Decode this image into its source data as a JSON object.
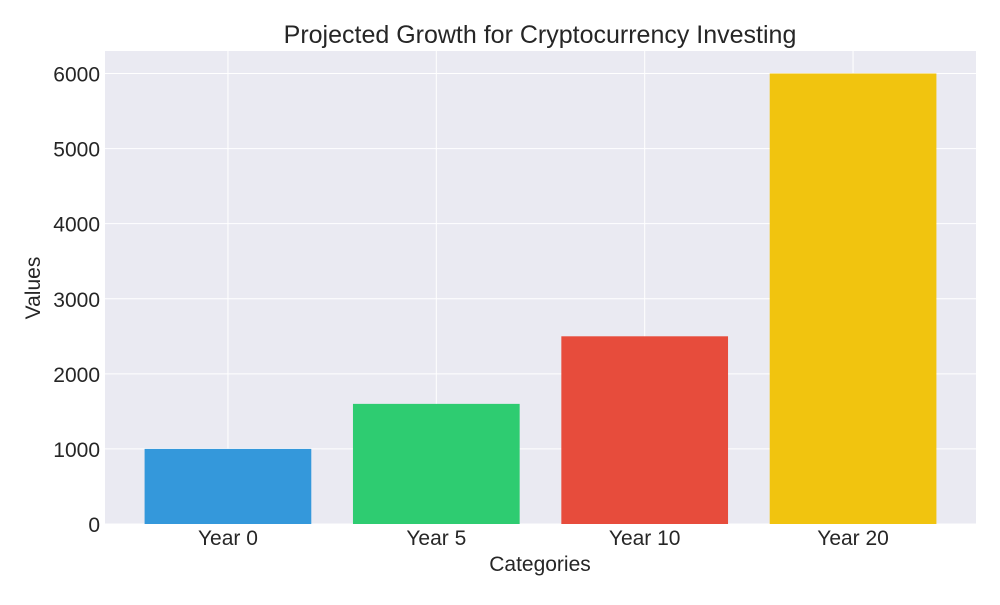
{
  "chart_data": {
    "type": "bar",
    "title": "Projected Growth for Cryptocurrency Investing",
    "xlabel": "Categories",
    "ylabel": "Values",
    "categories": [
      "Year 0",
      "Year 5",
      "Year 10",
      "Year 20"
    ],
    "values": [
      1000,
      1600,
      2500,
      6000
    ],
    "colors": [
      "#3498db",
      "#2ecc71",
      "#e74c3c",
      "#f1c40f"
    ],
    "ylim": [
      0,
      6300
    ],
    "yticks": [
      0,
      1000,
      2000,
      3000,
      4000,
      5000,
      6000
    ],
    "grid": true,
    "background": "#eaeaf2"
  }
}
